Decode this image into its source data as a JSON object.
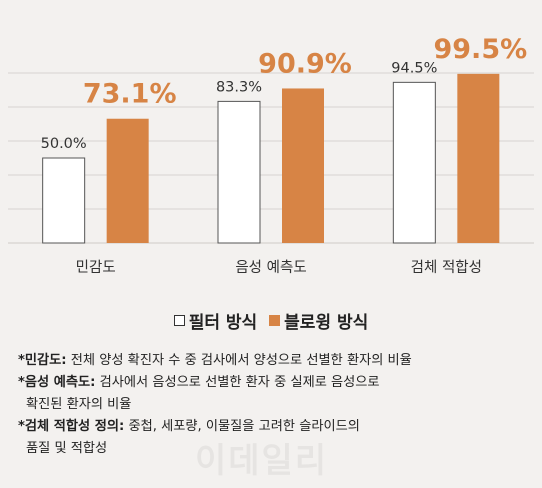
{
  "chart_data": {
    "type": "bar",
    "categories": [
      "민감도",
      "음성 예측도",
      "검체 적합성"
    ],
    "series": [
      {
        "name": "필터 방식",
        "values": [
          50.0,
          83.3,
          94.5
        ],
        "labels": [
          "50.0%",
          "83.3%",
          "94.5%"
        ],
        "color": "#ffffff",
        "stroke": "#555555"
      },
      {
        "name": "블로윙 방식",
        "values": [
          73.1,
          90.9,
          99.5
        ],
        "labels": [
          "73.1%",
          "90.9%",
          "99.5%"
        ],
        "color": "#d78445"
      }
    ],
    "ylim": [
      0,
      100
    ],
    "grid": true,
    "legend_position": "bottom"
  },
  "legend": {
    "filter": "필터 방식",
    "blowing": "블로윙 방식"
  },
  "notes": [
    {
      "term": "*민감도:",
      "text": " 전체 양성 확진자 수 중 검사에서 양성으로 선별한 환자의 비율"
    },
    {
      "term": "*음성 예측도:",
      "text": " 검사에서 음성으로 선별한 환자 중 실제로 음성으로"
    },
    {
      "term": "",
      "text": "확진된 환자의 비율"
    },
    {
      "term": "*검체 적합성 정의:",
      "text": " 중첩, 세포량, 이물질을 고려한 슬라이드의"
    },
    {
      "term": "",
      "text": "품질 및 적합성"
    }
  ],
  "watermark": "이데일리",
  "colors": {
    "accent": "#d78445",
    "background": "#f3f1ef",
    "grid": "#d7d4d1"
  }
}
